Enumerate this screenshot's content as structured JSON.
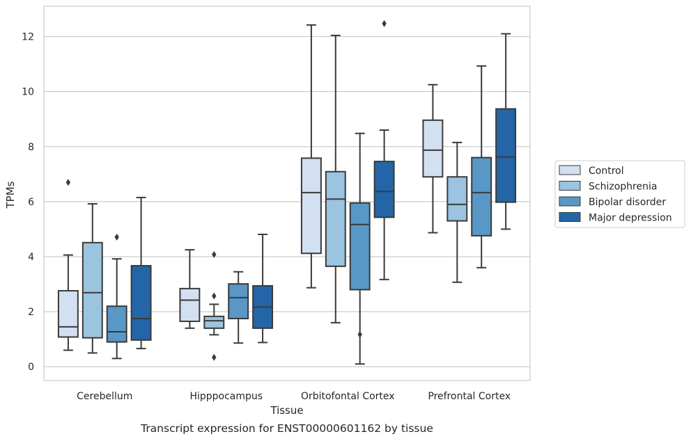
{
  "chart_data": {
    "type": "boxplot",
    "xlabel": "Tissue",
    "ylabel": "TPMs",
    "caption": "Transcript expression for ENST00000601162 by tissue",
    "ylim": [
      -0.5,
      13.1
    ],
    "yticks": [
      0,
      2,
      4,
      6,
      8,
      10,
      12
    ],
    "grid": "horizontal",
    "legend_position": "right",
    "categories": [
      "Cerebellum",
      "Hipppocampus",
      "Orbitofontal Cortex",
      "Prefrontal Cortex"
    ],
    "series": [
      {
        "name": "Control",
        "color": "#d2e0f1",
        "boxes": [
          {
            "whislo": 0.6,
            "q1": 1.08,
            "med": 1.45,
            "q3": 2.76,
            "whishi": 4.06,
            "fliers": [
              6.7
            ]
          },
          {
            "whislo": 1.4,
            "q1": 1.65,
            "med": 2.42,
            "q3": 2.84,
            "whishi": 4.25,
            "fliers": []
          },
          {
            "whislo": 2.87,
            "q1": 4.12,
            "med": 6.33,
            "q3": 7.58,
            "whishi": 12.42,
            "fliers": []
          },
          {
            "whislo": 4.87,
            "q1": 6.9,
            "med": 7.87,
            "q3": 8.96,
            "whishi": 10.25,
            "fliers": []
          }
        ]
      },
      {
        "name": "Schizophrenia",
        "color": "#9ac4df",
        "boxes": [
          {
            "whislo": 0.5,
            "q1": 1.05,
            "med": 2.69,
            "q3": 4.51,
            "whishi": 5.92,
            "fliers": []
          },
          {
            "whislo": 1.16,
            "q1": 1.4,
            "med": 1.67,
            "q3": 1.83,
            "whishi": 2.27,
            "fliers": [
              4.08,
              2.57,
              0.34
            ]
          },
          {
            "whislo": 1.6,
            "q1": 3.65,
            "med": 6.09,
            "q3": 7.09,
            "whishi": 12.04,
            "fliers": []
          },
          {
            "whislo": 3.07,
            "q1": 5.3,
            "med": 5.9,
            "q3": 6.9,
            "whishi": 8.15,
            "fliers": []
          }
        ]
      },
      {
        "name": "Bipolar disorder",
        "color": "#5897c6",
        "boxes": [
          {
            "whislo": 0.3,
            "q1": 0.9,
            "med": 1.27,
            "q3": 2.2,
            "whishi": 3.92,
            "fliers": [
              4.71
            ]
          },
          {
            "whislo": 0.86,
            "q1": 1.75,
            "med": 2.51,
            "q3": 3.01,
            "whishi": 3.45,
            "fliers": []
          },
          {
            "whislo": 0.1,
            "q1": 2.8,
            "med": 5.17,
            "q3": 5.95,
            "whishi": 8.48,
            "fliers": [
              1.17
            ]
          },
          {
            "whislo": 3.6,
            "q1": 4.76,
            "med": 6.33,
            "q3": 7.6,
            "whishi": 10.93,
            "fliers": []
          }
        ]
      },
      {
        "name": "Major depression",
        "color": "#2465a8",
        "boxes": [
          {
            "whislo": 0.66,
            "q1": 0.97,
            "med": 1.75,
            "q3": 3.67,
            "whishi": 6.15,
            "fliers": []
          },
          {
            "whislo": 0.88,
            "q1": 1.4,
            "med": 2.17,
            "q3": 2.94,
            "whishi": 4.81,
            "fliers": []
          },
          {
            "whislo": 3.17,
            "q1": 5.43,
            "med": 6.37,
            "q3": 7.46,
            "whishi": 8.6,
            "fliers": [
              12.47
            ]
          },
          {
            "whislo": 5.0,
            "q1": 5.98,
            "med": 7.62,
            "q3": 9.37,
            "whishi": 12.1,
            "fliers": []
          }
        ]
      }
    ]
  }
}
